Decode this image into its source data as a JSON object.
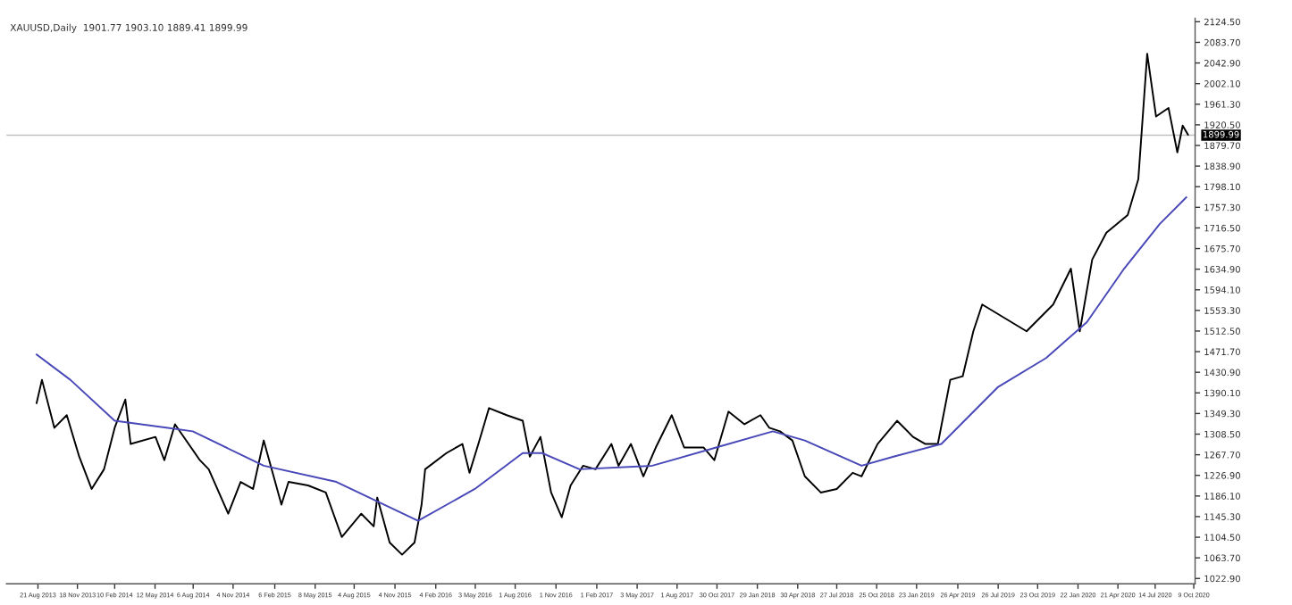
{
  "chart_data": {
    "type": "line",
    "title": "XAUUSD,Daily  1901.77 1903.10 1889.41 1899.99",
    "series": [
      {
        "color": "#000000",
        "x": [
          "2013-08-18",
          "2013-08-30",
          "2013-09-27",
          "2013-10-25",
          "2013-11-22",
          "2013-12-20",
          "2014-01-17",
          "2014-02-10",
          "2014-03-06",
          "2014-03-18",
          "2014-05-13",
          "2014-06-02",
          "2014-06-26",
          "2014-08-21",
          "2014-09-10",
          "2014-10-24",
          "2014-11-21",
          "2014-12-19",
          "2015-01-12",
          "2015-02-21",
          "2015-03-09",
          "2015-04-22",
          "2015-06-01",
          "2015-07-07",
          "2015-08-20",
          "2015-09-17",
          "2015-09-25",
          "2015-10-23",
          "2015-11-20",
          "2015-12-18",
          "2016-01-03",
          "2016-01-11",
          "2016-02-28",
          "2016-04-04",
          "2016-04-20",
          "2016-05-10",
          "2016-06-03",
          "2016-07-13",
          "2016-08-18",
          "2016-09-03",
          "2016-09-27",
          "2016-10-21",
          "2016-11-14",
          "2016-12-04",
          "2017-01-01",
          "2017-01-29",
          "2017-03-06",
          "2017-03-22",
          "2017-04-19",
          "2017-05-17",
          "2017-06-14",
          "2017-07-20",
          "2017-08-17",
          "2017-09-30",
          "2017-10-24",
          "2017-11-25",
          "2017-12-31",
          "2018-02-05",
          "2018-02-25",
          "2018-03-21",
          "2018-04-18",
          "2018-05-16",
          "2018-06-21",
          "2018-07-27",
          "2018-09-01",
          "2018-09-21",
          "2018-10-27",
          "2018-12-10",
          "2019-01-15",
          "2019-02-12",
          "2019-03-12",
          "2019-04-09",
          "2019-05-07",
          "2019-05-31",
          "2019-06-20",
          "2019-09-28",
          "2019-11-27",
          "2020-01-06",
          "2020-01-26",
          "2020-02-23",
          "2020-03-26",
          "2020-05-13",
          "2020-06-06",
          "2020-06-26",
          "2020-07-16",
          "2020-08-13",
          "2020-09-02",
          "2020-09-14",
          "2020-09-26"
        ],
        "values": [
          1370,
          1416,
          1321,
          1346,
          1264,
          1200,
          1239,
          1321,
          1377,
          1289,
          1303,
          1257,
          1328,
          1257,
          1239,
          1151,
          1214,
          1200,
          1296,
          1169,
          1214,
          1207,
          1193,
          1105,
          1151,
          1126,
          1183,
          1094,
          1070,
          1094,
          1169,
          1239,
          1271,
          1289,
          1232,
          1289,
          1360,
          1346,
          1335,
          1264,
          1303,
          1193,
          1144,
          1207,
          1246,
          1239,
          1289,
          1246,
          1289,
          1225,
          1282,
          1346,
          1282,
          1282,
          1257,
          1353,
          1328,
          1346,
          1321,
          1314,
          1296,
          1225,
          1193,
          1200,
          1232,
          1225,
          1289,
          1335,
          1303,
          1289,
          1289,
          1416,
          1423,
          1512,
          1565,
          1512,
          1565,
          1636,
          1512,
          1654,
          1707,
          1742,
          1813,
          2061,
          1937,
          1954,
          1866,
          1919,
          1901
        ]
      },
      {
        "color": "#4848b8",
        "x": [
          "2013-08-18",
          "2013-11-02",
          "2014-02-10",
          "2014-06-10",
          "2014-08-05",
          "2015-01-12",
          "2015-06-25",
          "2015-12-26",
          "2016-05-02",
          "2016-08-18",
          "2016-10-01",
          "2016-12-24",
          "2017-06-06",
          "2017-10-28",
          "2018-03-05",
          "2018-05-16",
          "2018-09-21",
          "2018-12-02",
          "2019-03-20",
          "2019-07-26",
          "2019-11-11",
          "2020-02-11",
          "2020-05-05",
          "2020-07-24",
          "2020-09-22"
        ],
        "values": [
          1466,
          1416,
          1335,
          1321,
          1314,
          1246,
          1214,
          1137,
          1200,
          1271,
          1271,
          1239,
          1246,
          1282,
          1314,
          1296,
          1246,
          1264,
          1289,
          1402,
          1459,
          1530,
          1636,
          1724,
          1777
        ]
      }
    ],
    "xlim": [
      "2013-06-11",
      "2020-10-12"
    ],
    "xticks": [
      {
        "value": "2013-08-21",
        "label": "21 Aug 2013"
      },
      {
        "value": "2013-11-18",
        "label": "18 Nov 2013"
      },
      {
        "value": "2014-02-10",
        "label": "10 Feb 2014"
      },
      {
        "value": "2014-05-12",
        "label": "12 May 2014"
      },
      {
        "value": "2014-08-06",
        "label": "6 Aug 2014"
      },
      {
        "value": "2014-11-04",
        "label": "4 Nov 2014"
      },
      {
        "value": "2015-02-06",
        "label": "6 Feb 2015"
      },
      {
        "value": "2015-05-08",
        "label": "8 May 2015"
      },
      {
        "value": "2015-08-04",
        "label": "4 Aug 2015"
      },
      {
        "value": "2015-11-04",
        "label": "4 Nov 2015"
      },
      {
        "value": "2016-02-04",
        "label": "4 Feb 2016"
      },
      {
        "value": "2016-05-03",
        "label": "3 May 2016"
      },
      {
        "value": "2016-08-01",
        "label": "1 Aug 2016"
      },
      {
        "value": "2016-11-01",
        "label": "1 Nov 2016"
      },
      {
        "value": "2017-02-01",
        "label": "1 Feb 2017"
      },
      {
        "value": "2017-05-03",
        "label": "3 May 2017"
      },
      {
        "value": "2017-08-01",
        "label": "1 Aug 2017"
      },
      {
        "value": "2017-10-30",
        "label": "30 Oct 2017"
      },
      {
        "value": "2018-01-29",
        "label": "29 Jan 2018"
      },
      {
        "value": "2018-04-30",
        "label": "30 Apr 2018"
      },
      {
        "value": "2018-07-27",
        "label": "27 Jul 2018"
      },
      {
        "value": "2018-10-25",
        "label": "25 Oct 2018"
      },
      {
        "value": "2019-01-23",
        "label": "23 Jan 2019"
      },
      {
        "value": "2019-04-26",
        "label": "26 Apr 2019"
      },
      {
        "value": "2019-07-26",
        "label": "26 Jul 2019"
      },
      {
        "value": "2019-10-23",
        "label": "23 Oct 2019"
      },
      {
        "value": "2020-01-22",
        "label": "22 Jan 2020"
      },
      {
        "value": "2020-04-21",
        "label": "21 Apr 2020"
      },
      {
        "value": "2020-07-14",
        "label": "14 Jul 2020"
      },
      {
        "value": "2020-10-09",
        "label": "9 Oct 2020"
      }
    ],
    "ylim": [
      1012.3,
      2131.6
    ],
    "yticks": [
      {
        "value": 1022.9,
        "label": "1022.90"
      },
      {
        "value": 1063.7,
        "label": "1063.70"
      },
      {
        "value": 1104.5,
        "label": "1104.50"
      },
      {
        "value": 1145.3,
        "label": "1145.30"
      },
      {
        "value": 1186.1,
        "label": "1186.10"
      },
      {
        "value": 1226.9,
        "label": "1226.90"
      },
      {
        "value": 1267.7,
        "label": "1267.70"
      },
      {
        "value": 1308.5,
        "label": "1308.50"
      },
      {
        "value": 1349.3,
        "label": "1349.30"
      },
      {
        "value": 1390.1,
        "label": "1390.10"
      },
      {
        "value": 1430.9,
        "label": "1430.90"
      },
      {
        "value": 1471.7,
        "label": "1471.70"
      },
      {
        "value": 1512.5,
        "label": "1512.50"
      },
      {
        "value": 1553.3,
        "label": "1553.30"
      },
      {
        "value": 1594.1,
        "label": "1594.10"
      },
      {
        "value": 1634.9,
        "label": "1634.90"
      },
      {
        "value": 1675.7,
        "label": "1675.70"
      },
      {
        "value": 1716.5,
        "label": "1716.50"
      },
      {
        "value": 1757.3,
        "label": "1757.30"
      },
      {
        "value": 1798.1,
        "label": "1798.10"
      },
      {
        "value": 1838.9,
        "label": "1838.90"
      },
      {
        "value": 1879.7,
        "label": "1879.70"
      },
      {
        "value": 1920.5,
        "label": "1920.50"
      },
      {
        "value": 1961.3,
        "label": "1961.30"
      },
      {
        "value": 2002.1,
        "label": "2002.10"
      },
      {
        "value": 2042.9,
        "label": "2042.90"
      },
      {
        "value": 2083.7,
        "label": "2083.70"
      },
      {
        "value": 2124.5,
        "label": "2124.50"
      }
    ],
    "ref_lines": [
      {
        "axis": "y",
        "value": 1899.99,
        "label": "1899.99",
        "color": "#c0c0c0"
      }
    ],
    "grid": false,
    "legend": false,
    "line_style": "solid",
    "marker": "none"
  }
}
